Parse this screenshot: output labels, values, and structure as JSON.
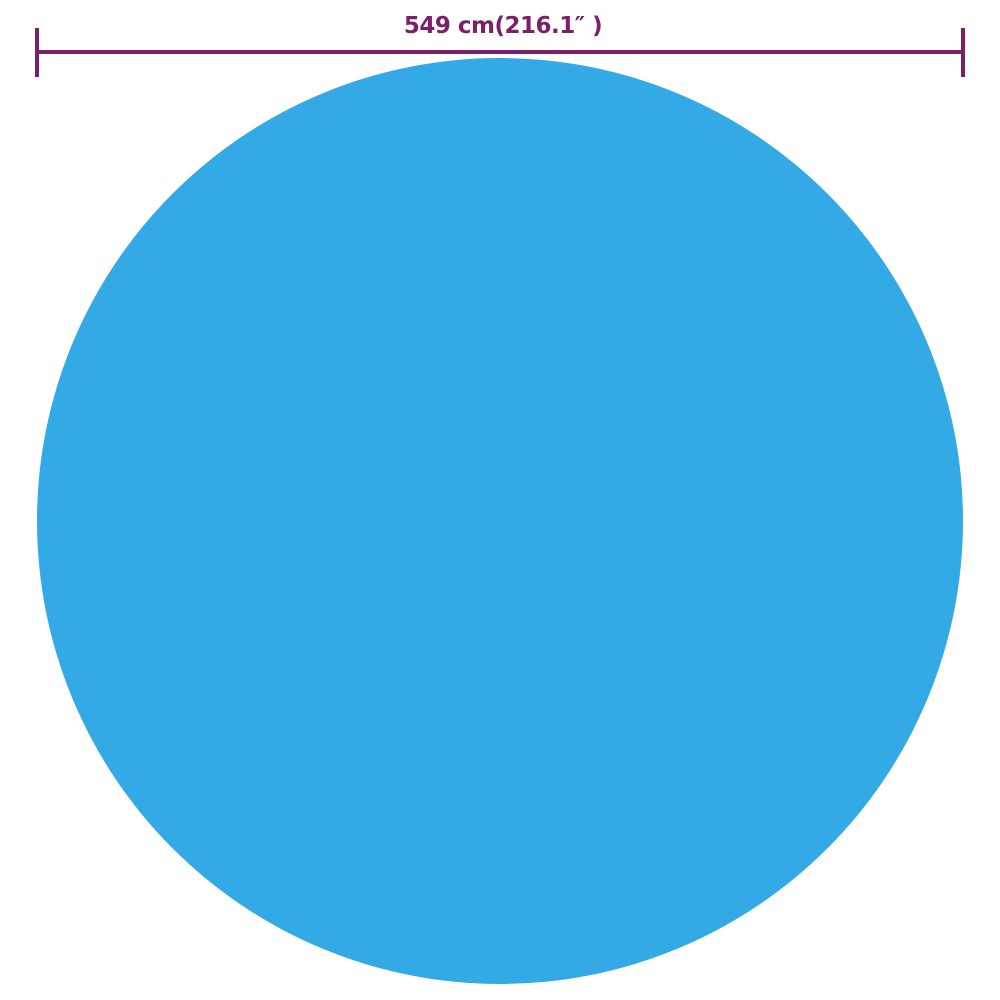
{
  "dimension": {
    "label": "549 cm(216.1″ )",
    "color": "#7b2068"
  },
  "cover": {
    "shape": "circle",
    "color": "#33a9e6"
  }
}
